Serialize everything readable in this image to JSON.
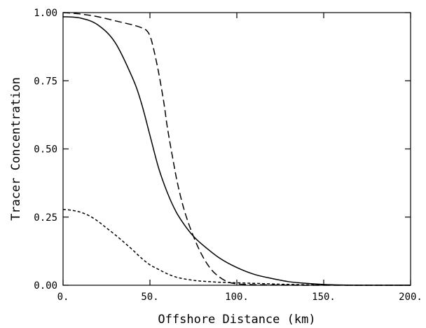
{
  "chart_data": {
    "type": "line",
    "title": "",
    "xlabel": "Offshore Distance (km)",
    "ylabel": "Tracer Concentration",
    "xlim": [
      0,
      200
    ],
    "ylim": [
      0,
      1
    ],
    "xticks": [
      0,
      50,
      100,
      150,
      200
    ],
    "xtick_labels": [
      "0.",
      "50.",
      "100.",
      "150.",
      "200."
    ],
    "yticks": [
      0,
      0.25,
      0.5,
      0.75,
      1.0
    ],
    "ytick_labels": [
      "0.00",
      "0.25",
      "0.50",
      "0.75",
      "1.00"
    ],
    "grid": false,
    "legend": "none",
    "series": [
      {
        "style": "solid",
        "x": [
          0,
          10,
          20,
          30,
          40,
          45,
          50,
          55,
          60,
          65,
          70,
          75,
          80,
          90,
          100,
          110,
          120,
          130,
          140,
          150,
          160,
          170,
          180,
          190,
          200
        ],
        "y": [
          0.985,
          0.98,
          0.955,
          0.89,
          0.76,
          0.67,
          0.55,
          0.43,
          0.34,
          0.27,
          0.22,
          0.18,
          0.15,
          0.1,
          0.065,
          0.04,
          0.025,
          0.013,
          0.007,
          0.003,
          0.001,
          0.0,
          0.0,
          0.0,
          0.0
        ]
      },
      {
        "style": "long-dash",
        "x": [
          0,
          10,
          20,
          30,
          40,
          45,
          48,
          50,
          52,
          55,
          58,
          60,
          63,
          66,
          70,
          75,
          80,
          85,
          90,
          95,
          100,
          110,
          120,
          140,
          160,
          180,
          200
        ],
        "y": [
          1.0,
          0.995,
          0.985,
          0.97,
          0.955,
          0.945,
          0.935,
          0.915,
          0.87,
          0.78,
          0.67,
          0.58,
          0.47,
          0.37,
          0.27,
          0.18,
          0.11,
          0.06,
          0.03,
          0.012,
          0.005,
          0.002,
          0.001,
          0.0,
          0.0,
          0.0,
          0.0
        ]
      },
      {
        "style": "short-dash",
        "x": [
          0,
          5,
          10,
          15,
          20,
          25,
          30,
          35,
          40,
          45,
          50,
          55,
          60,
          65,
          70,
          75,
          80,
          90,
          100,
          110,
          120,
          130,
          150,
          170,
          200
        ],
        "y": [
          0.278,
          0.275,
          0.268,
          0.255,
          0.235,
          0.21,
          0.185,
          0.158,
          0.13,
          0.1,
          0.075,
          0.058,
          0.042,
          0.03,
          0.023,
          0.018,
          0.015,
          0.011,
          0.009,
          0.007,
          0.005,
          0.003,
          0.001,
          0.0,
          0.0
        ]
      }
    ]
  }
}
